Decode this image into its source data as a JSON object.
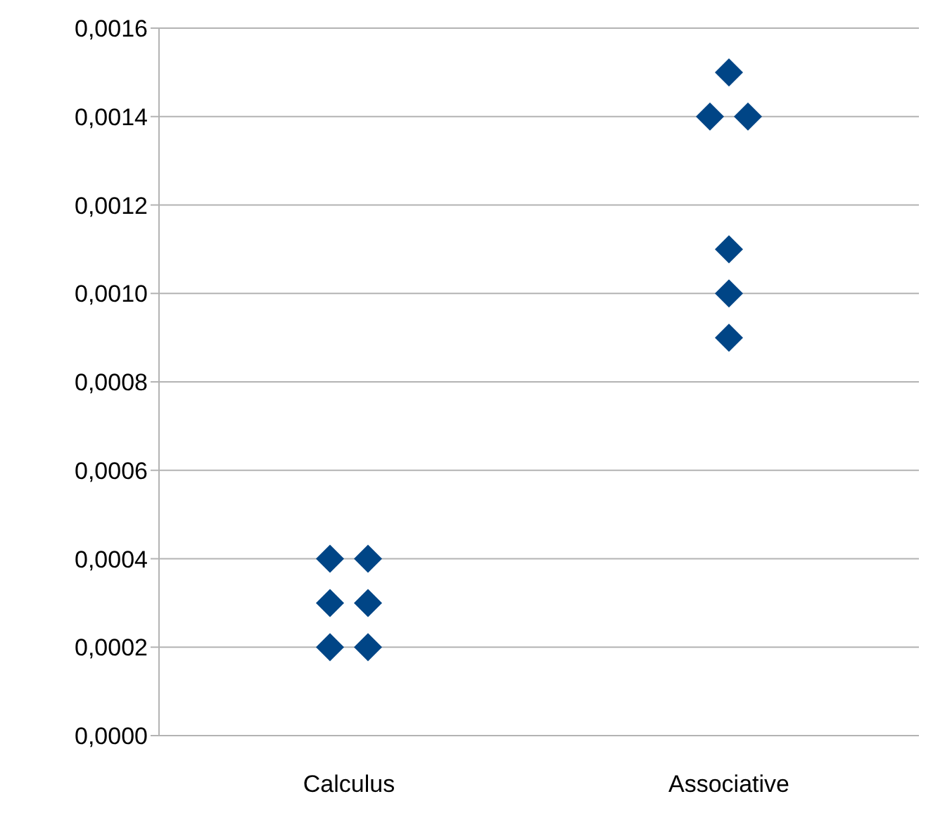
{
  "chart_data": {
    "type": "scatter",
    "categories": [
      "Calculus",
      "Associative"
    ],
    "series": [
      {
        "color": "#004586",
        "x": [
          "Calculus",
          "Calculus",
          "Calculus",
          "Calculus",
          "Calculus",
          "Calculus",
          "Associative",
          "Associative",
          "Associative",
          "Associative",
          "Associative",
          "Associative"
        ],
        "values": [
          0.0004,
          0.0004,
          0.0003,
          0.0003,
          0.0002,
          0.0002,
          0.0015,
          0.0014,
          0.0014,
          0.0011,
          0.001,
          0.0009
        ]
      }
    ],
    "ylim": [
      0,
      0.0016
    ],
    "yticks": [
      {
        "value": 0,
        "label": "0,0000"
      },
      {
        "value": 0.0002,
        "label": "0,0002"
      },
      {
        "value": 0.0004,
        "label": "0,0004"
      },
      {
        "value": 0.0006,
        "label": "0,0006"
      },
      {
        "value": 0.0008,
        "label": "0,0008"
      },
      {
        "value": 0.001,
        "label": "0,0010"
      },
      {
        "value": 0.0012,
        "label": "0,0012"
      },
      {
        "value": 0.0014,
        "label": "0,0014"
      },
      {
        "value": 0.0016,
        "label": "0,0016"
      }
    ],
    "grid": "y",
    "marker": "diamond"
  }
}
